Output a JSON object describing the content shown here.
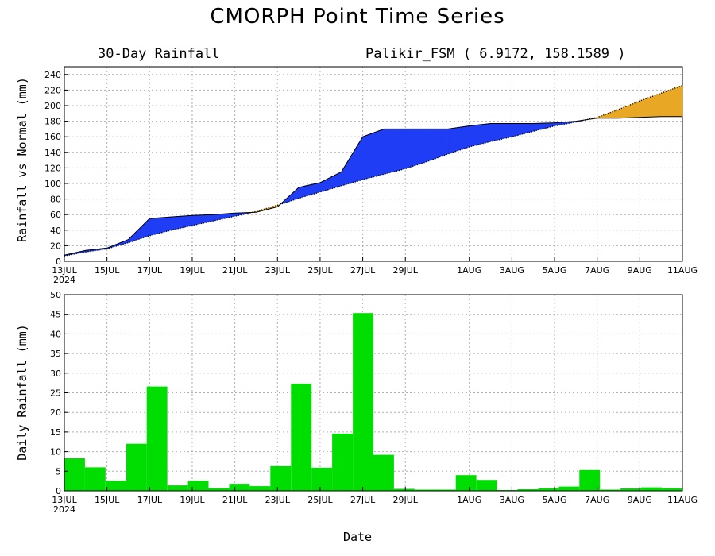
{
  "title": "CMORPH Point Time Series",
  "subtitle_left": "30-Day Rainfall",
  "subtitle_right": "Palikir_FSM ( 6.9172, 158.1589 )",
  "xlabel": "Date",
  "x_ticks": [
    "13JUL",
    "15JUL",
    "17JUL",
    "19JUL",
    "21JUL",
    "23JUL",
    "25JUL",
    "27JUL",
    "29JUL",
    "1AUG",
    "3AUG",
    "5AUG",
    "7AUG",
    "9AUG",
    "11AUG"
  ],
  "x_year": "2024",
  "colors": {
    "above_normal": "#1f3df5",
    "below_normal": "#e8a825",
    "daily_bar": "#00dd00"
  },
  "chart_data": [
    {
      "type": "area",
      "ylabel": "Rainfall vs Normal (mm)",
      "ylim": [
        0,
        250
      ],
      "yticks": [
        0,
        20,
        40,
        60,
        80,
        100,
        120,
        140,
        160,
        180,
        200,
        220,
        240
      ],
      "grid": true,
      "x": [
        "13JUL",
        "14JUL",
        "15JUL",
        "16JUL",
        "17JUL",
        "18JUL",
        "19JUL",
        "20JUL",
        "21JUL",
        "22JUL",
        "23JUL",
        "24JUL",
        "25JUL",
        "26JUL",
        "27JUL",
        "28JUL",
        "29JUL",
        "30JUL",
        "31JUL",
        "1AUG",
        "2AUG",
        "3AUG",
        "4AUG",
        "5AUG",
        "6AUG",
        "7AUG",
        "8AUG",
        "9AUG",
        "10AUG",
        "11AUG"
      ],
      "series": [
        {
          "values": [
            8,
            14,
            17,
            28,
            55,
            57,
            59,
            60,
            62,
            63,
            70,
            95,
            101,
            115,
            160,
            170,
            170,
            170,
            170,
            174,
            177,
            177,
            177,
            178,
            180,
            184,
            184,
            185,
            186,
            186
          ]
        },
        {
          "values": [
            7,
            12,
            16,
            24,
            33,
            40,
            46,
            52,
            58,
            64,
            72,
            81,
            89,
            97,
            105,
            112,
            119,
            128,
            138,
            147,
            154,
            160,
            167,
            174,
            179,
            185,
            195,
            206,
            216,
            226
          ]
        }
      ]
    },
    {
      "type": "bar",
      "ylabel": "Daily Rainfall (mm)",
      "ylim": [
        0,
        50
      ],
      "yticks": [
        0,
        5,
        10,
        15,
        20,
        25,
        30,
        35,
        40,
        45,
        50
      ],
      "grid": true,
      "categories": [
        "13JUL",
        "14JUL",
        "15JUL",
        "16JUL",
        "17JUL",
        "18JUL",
        "19JUL",
        "20JUL",
        "21JUL",
        "22JUL",
        "23JUL",
        "24JUL",
        "25JUL",
        "26JUL",
        "27JUL",
        "28JUL",
        "29JUL",
        "30JUL",
        "31JUL",
        "1AUG",
        "2AUG",
        "3AUG",
        "4AUG",
        "5AUG",
        "6AUG",
        "7AUG",
        "8AUG",
        "9AUG",
        "10AUG",
        "11AUG"
      ],
      "values": [
        8.3,
        6.0,
        2.6,
        12.0,
        26.6,
        1.4,
        2.6,
        0.7,
        1.8,
        1.2,
        6.3,
        27.3,
        5.9,
        14.6,
        45.3,
        9.2,
        0.5,
        0.3,
        0.3,
        4.0,
        2.8,
        0.2,
        0.4,
        0.7,
        1.1,
        5.3,
        0.3,
        0.6,
        0.9,
        0.7
      ]
    }
  ]
}
